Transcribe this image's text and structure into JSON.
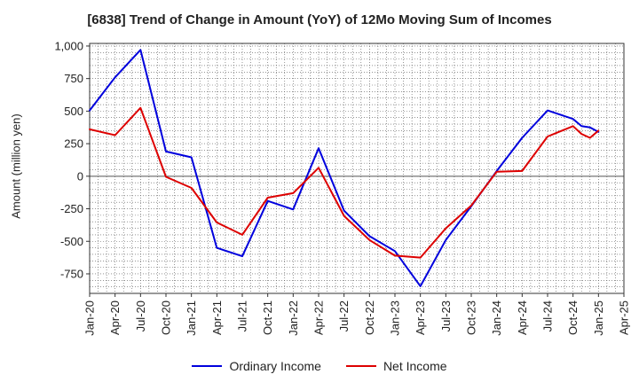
{
  "chart_data": {
    "type": "line",
    "title": "[6838]  Trend of Change in Amount (YoY) of 12Mo Moving Sum of Incomes",
    "ylabel": "Amount (million yen)",
    "xlabel": "",
    "ylim": [
      -900,
      1020
    ],
    "yticks": [
      1000,
      750,
      500,
      250,
      0,
      -250,
      -500,
      -750
    ],
    "ytick_labels": [
      "1,000",
      "750",
      "500",
      "250",
      "0",
      "-250",
      "-500",
      "-750"
    ],
    "x_tick_labels": [
      "Jan-20",
      "Apr-20",
      "Jul-20",
      "Oct-20",
      "Jan-21",
      "Apr-21",
      "Jul-21",
      "Oct-21",
      "Jan-22",
      "Apr-22",
      "Jul-22",
      "Oct-22",
      "Jan-23",
      "Apr-23",
      "Jul-23",
      "Oct-23",
      "Jan-24",
      "Apr-24",
      "Jul-24",
      "Oct-24",
      "Jan-25",
      "Apr-25"
    ],
    "grid": true,
    "legend_position": "bottom-center",
    "series": [
      {
        "name": "Ordinary Income",
        "color": "#0000dd",
        "points": [
          [
            "Jan-20",
            505
          ],
          [
            "Apr-20",
            760
          ],
          [
            "Jul-20",
            970
          ],
          [
            "Oct-20",
            190
          ],
          [
            "Jan-21",
            145
          ],
          [
            "Apr-21",
            -550
          ],
          [
            "Jul-21",
            -615
          ],
          [
            "Oct-21",
            -190
          ],
          [
            "Jan-22",
            -255
          ],
          [
            "Apr-22",
            215
          ],
          [
            "Jul-22",
            -265
          ],
          [
            "Oct-22",
            -460
          ],
          [
            "Jan-23",
            -575
          ],
          [
            "Apr-23",
            -845
          ],
          [
            "Jul-23",
            -490
          ],
          [
            "Oct-23",
            -230
          ],
          [
            "Jan-24",
            40
          ],
          [
            "Apr-24",
            295
          ],
          [
            "Jul-24",
            505
          ],
          [
            "Oct-24",
            440
          ],
          [
            "Nov-24",
            385
          ],
          [
            "Dec-24",
            375
          ],
          [
            "Jan-25",
            340
          ]
        ]
      },
      {
        "name": "Net Income",
        "color": "#dd0000",
        "points": [
          [
            "Jan-20",
            360
          ],
          [
            "Apr-20",
            315
          ],
          [
            "Jul-20",
            525
          ],
          [
            "Oct-20",
            -5
          ],
          [
            "Jan-21",
            -90
          ],
          [
            "Apr-21",
            -355
          ],
          [
            "Jul-21",
            -450
          ],
          [
            "Oct-21",
            -165
          ],
          [
            "Jan-22",
            -130
          ],
          [
            "Apr-22",
            65
          ],
          [
            "Jul-22",
            -305
          ],
          [
            "Oct-22",
            -490
          ],
          [
            "Jan-23",
            -610
          ],
          [
            "Apr-23",
            -625
          ],
          [
            "Jul-23",
            -400
          ],
          [
            "Oct-23",
            -225
          ],
          [
            "Jan-24",
            35
          ],
          [
            "Apr-24",
            40
          ],
          [
            "Jul-24",
            305
          ],
          [
            "Oct-24",
            385
          ],
          [
            "Nov-24",
            325
          ],
          [
            "Dec-24",
            295
          ],
          [
            "Jan-25",
            350
          ]
        ]
      }
    ]
  }
}
